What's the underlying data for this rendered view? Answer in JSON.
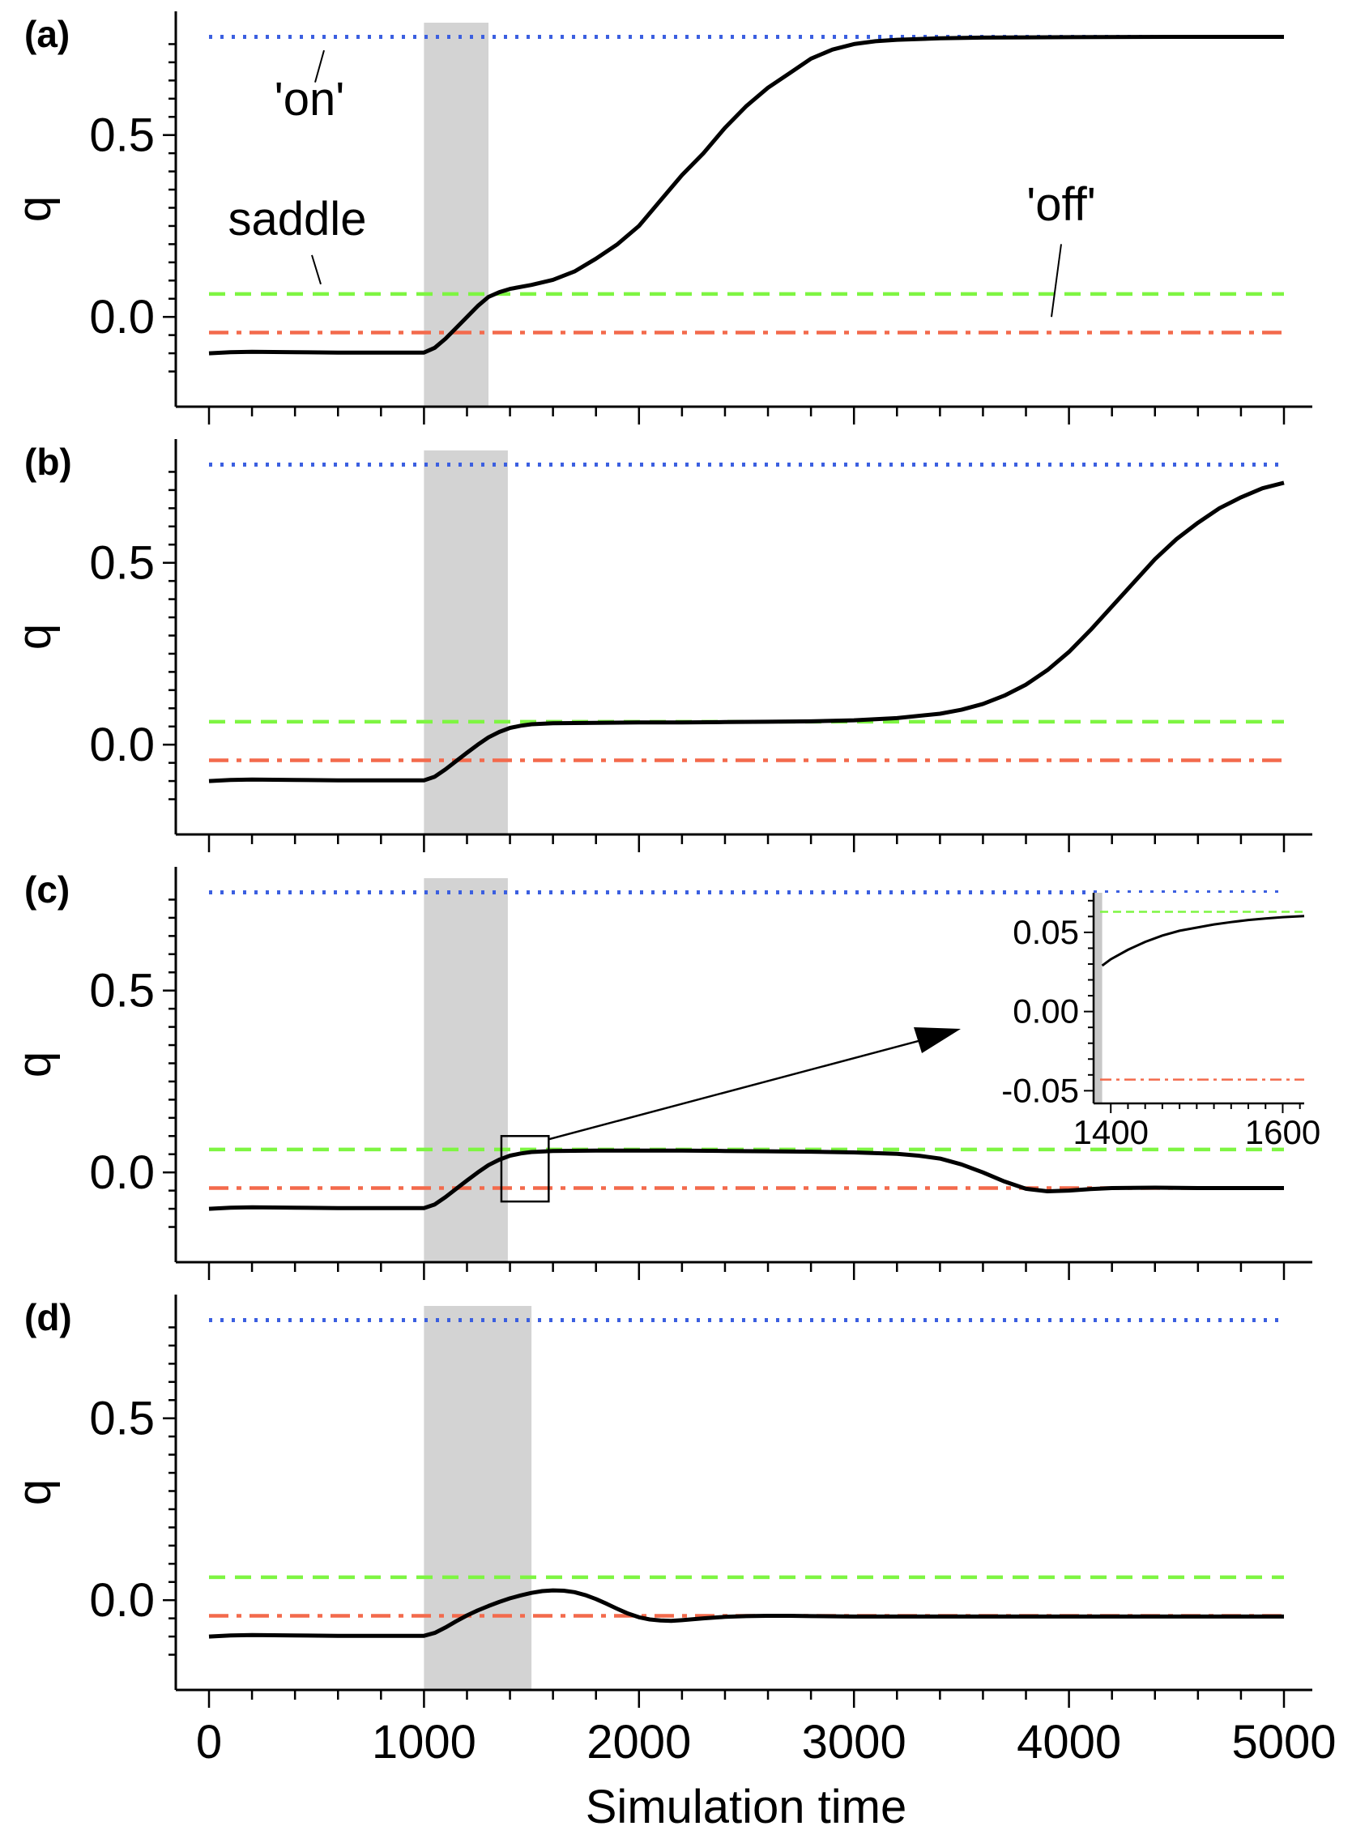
{
  "chart_data": {
    "type": "line",
    "xlabel": "Simulation time",
    "xlim": [
      0,
      5000
    ],
    "x_ticks": [
      0,
      1000,
      2000,
      3000,
      4000,
      5000
    ],
    "x_tick_labels": [
      "0",
      "1000",
      "2000",
      "3000",
      "4000",
      "5000"
    ],
    "ylabel": "q",
    "ylim": [
      -0.18,
      0.8
    ],
    "y_ticks": [
      0.0,
      0.5
    ],
    "y_tick_labels": [
      "0.0",
      "0.5"
    ],
    "reference_lines": [
      {
        "key": "on",
        "value": 0.77,
        "style": "dotted",
        "color": "#3b5fe0"
      },
      {
        "key": "saddle",
        "value": 0.063,
        "style": "dashed",
        "color": "#7ef542"
      },
      {
        "key": "off",
        "value": -0.043,
        "style": "dashdot",
        "color": "#f36a4c"
      }
    ],
    "annotations": {
      "on": "'on'",
      "saddle": "saddle",
      "off": "'off'"
    },
    "panels": [
      {
        "tag": "(a)",
        "shaded": [
          1000,
          1300
        ],
        "series": [
          {
            "x": [
              0,
              100,
              200,
              400,
              600,
              800,
              1000,
              1050,
              1100,
              1150,
              1200,
              1250,
              1300,
              1350,
              1400,
              1500,
              1600,
              1700,
              1800,
              1900,
              2000,
              2100,
              2200,
              2300,
              2400,
              2500,
              2600,
              2700,
              2800,
              2900,
              3000,
              3100,
              3200,
              3400,
              3600,
              4000,
              4500,
              5000
            ],
            "y": [
              -0.1,
              -0.097,
              -0.096,
              -0.097,
              -0.098,
              -0.098,
              -0.098,
              -0.085,
              -0.06,
              -0.03,
              0.0,
              0.03,
              0.055,
              0.068,
              0.077,
              0.088,
              0.102,
              0.125,
              0.16,
              0.2,
              0.25,
              0.32,
              0.39,
              0.45,
              0.52,
              0.58,
              0.63,
              0.67,
              0.71,
              0.735,
              0.75,
              0.758,
              0.762,
              0.766,
              0.768,
              0.769,
              0.77,
              0.77
            ]
          }
        ]
      },
      {
        "tag": "(b)",
        "shaded": [
          1000,
          1390
        ],
        "series": [
          {
            "x": [
              0,
              100,
              200,
              400,
              600,
              800,
              1000,
              1050,
              1100,
              1150,
              1200,
              1250,
              1300,
              1350,
              1400,
              1450,
              1500,
              1600,
              1800,
              2000,
              2200,
              2400,
              2600,
              2800,
              3000,
              3200,
              3400,
              3500,
              3600,
              3700,
              3800,
              3900,
              4000,
              4100,
              4200,
              4300,
              4400,
              4500,
              4600,
              4700,
              4800,
              4900,
              5000
            ],
            "y": [
              -0.1,
              -0.097,
              -0.096,
              -0.097,
              -0.098,
              -0.098,
              -0.098,
              -0.088,
              -0.068,
              -0.045,
              -0.022,
              0.0,
              0.02,
              0.035,
              0.046,
              0.052,
              0.056,
              0.059,
              0.06,
              0.061,
              0.061,
              0.062,
              0.063,
              0.064,
              0.067,
              0.073,
              0.085,
              0.096,
              0.112,
              0.135,
              0.165,
              0.205,
              0.255,
              0.315,
              0.38,
              0.445,
              0.51,
              0.565,
              0.61,
              0.65,
              0.68,
              0.705,
              0.72
            ]
          }
        ]
      },
      {
        "tag": "(c)",
        "shaded": [
          1000,
          1390
        ],
        "series": [
          {
            "x": [
              0,
              100,
              200,
              400,
              600,
              800,
              1000,
              1050,
              1100,
              1150,
              1200,
              1250,
              1300,
              1350,
              1400,
              1450,
              1500,
              1600,
              1800,
              2000,
              2200,
              2400,
              2600,
              2800,
              3000,
              3200,
              3300,
              3400,
              3500,
              3600,
              3700,
              3800,
              3900,
              4000,
              4100,
              4200,
              4400,
              4600,
              4800,
              5000
            ],
            "y": [
              -0.1,
              -0.097,
              -0.096,
              -0.097,
              -0.098,
              -0.098,
              -0.098,
              -0.088,
              -0.068,
              -0.045,
              -0.022,
              0.0,
              0.02,
              0.035,
              0.046,
              0.052,
              0.056,
              0.059,
              0.06,
              0.06,
              0.06,
              0.059,
              0.058,
              0.057,
              0.055,
              0.051,
              0.046,
              0.038,
              0.022,
              0.0,
              -0.025,
              -0.045,
              -0.052,
              -0.05,
              -0.046,
              -0.043,
              -0.042,
              -0.043,
              -0.043,
              -0.043
            ]
          }
        ]
      },
      {
        "tag": "(d)",
        "shaded": [
          1000,
          1500
        ],
        "series": [
          {
            "x": [
              0,
              100,
              200,
              400,
              600,
              800,
              1000,
              1050,
              1100,
              1150,
              1200,
              1250,
              1300,
              1350,
              1400,
              1450,
              1500,
              1550,
              1600,
              1650,
              1700,
              1750,
              1800,
              1850,
              1900,
              1950,
              2000,
              2050,
              2100,
              2150,
              2200,
              2300,
              2400,
              2500,
              2600,
              2700,
              2800,
              3000,
              3500,
              4000,
              4500,
              5000
            ],
            "y": [
              -0.1,
              -0.097,
              -0.096,
              -0.097,
              -0.098,
              -0.098,
              -0.098,
              -0.09,
              -0.075,
              -0.058,
              -0.042,
              -0.028,
              -0.016,
              -0.005,
              0.005,
              0.013,
              0.02,
              0.025,
              0.027,
              0.026,
              0.022,
              0.014,
              0.003,
              -0.01,
              -0.024,
              -0.037,
              -0.047,
              -0.053,
              -0.056,
              -0.057,
              -0.055,
              -0.05,
              -0.046,
              -0.044,
              -0.043,
              -0.043,
              -0.044,
              -0.045,
              -0.045,
              -0.045,
              -0.045,
              -0.045
            ]
          }
        ]
      }
    ],
    "inset": {
      "panel": "(c)",
      "source_box_x": [
        1360,
        1580
      ],
      "source_box_y": [
        -0.08,
        0.1
      ],
      "xlim": [
        1380,
        1625
      ],
      "ylim": [
        -0.058,
        0.075
      ],
      "x_ticks": [
        1400,
        1600
      ],
      "x_tick_labels": [
        "1400",
        "1600"
      ],
      "y_ticks": [
        0.05,
        0.0,
        -0.05
      ],
      "y_tick_labels": [
        "0.05",
        "0.00",
        "-0.05"
      ],
      "shaded": [
        1380,
        1390
      ],
      "series": {
        "x": [
          1390,
          1400,
          1420,
          1440,
          1460,
          1480,
          1500,
          1520,
          1540,
          1560,
          1580,
          1600,
          1625
        ],
        "y": [
          0.029,
          0.033,
          0.039,
          0.044,
          0.048,
          0.051,
          0.053,
          0.055,
          0.0565,
          0.0578,
          0.0588,
          0.0596,
          0.0603
        ]
      }
    }
  }
}
